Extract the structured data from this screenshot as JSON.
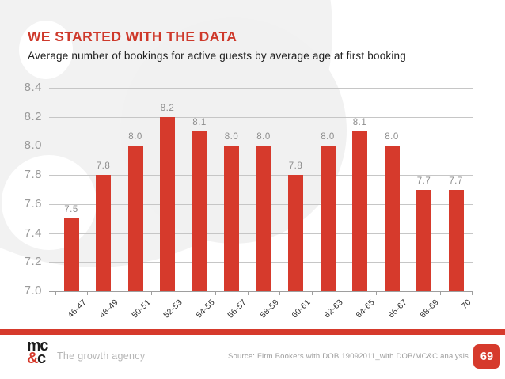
{
  "slide": {
    "title": "WE STARTED WITH THE DATA",
    "subtitle": "Average number of bookings for active guests by average age at first booking"
  },
  "chart_data": {
    "type": "bar",
    "title": "Average number of bookings for active guests by average age at first booking",
    "categories": [
      "46-47",
      "48-49",
      "50-51",
      "52-53",
      "54-55",
      "56-57",
      "58-59",
      "60-61",
      "62-63",
      "64-65",
      "66-67",
      "68-69",
      "70"
    ],
    "values": [
      7.5,
      7.8,
      8.0,
      8.2,
      8.1,
      8.0,
      8.0,
      7.8,
      8.0,
      8.1,
      8.0,
      7.7,
      7.7
    ],
    "xlabel": "",
    "ylabel": "",
    "ylim": [
      7.0,
      8.4
    ],
    "ytick_step": 0.2,
    "ytick_labels": [
      "8.4",
      "8.2",
      "8.0",
      "7.8",
      "7.6",
      "7.4",
      "7.2",
      "7.0"
    ],
    "grid": true,
    "legend": "none",
    "bar_color": "#d63a2c",
    "value_label_color": "#8d8d8d"
  },
  "footer": {
    "logo_top": "mc",
    "logo_amp": "&",
    "logo_bottom_c": "c",
    "tagline": "The growth agency",
    "source": "Source: Firm Bookers with DOB 19092011_with DOB/MC&C analysis",
    "page_number": "69"
  },
  "colors": {
    "accent_red": "#d63a2c",
    "title_red": "#ce392b",
    "grid_gray": "#c6c6c6",
    "axis_label_gray": "#9a9a9a",
    "watermark_gray": "#f2f2f2"
  }
}
